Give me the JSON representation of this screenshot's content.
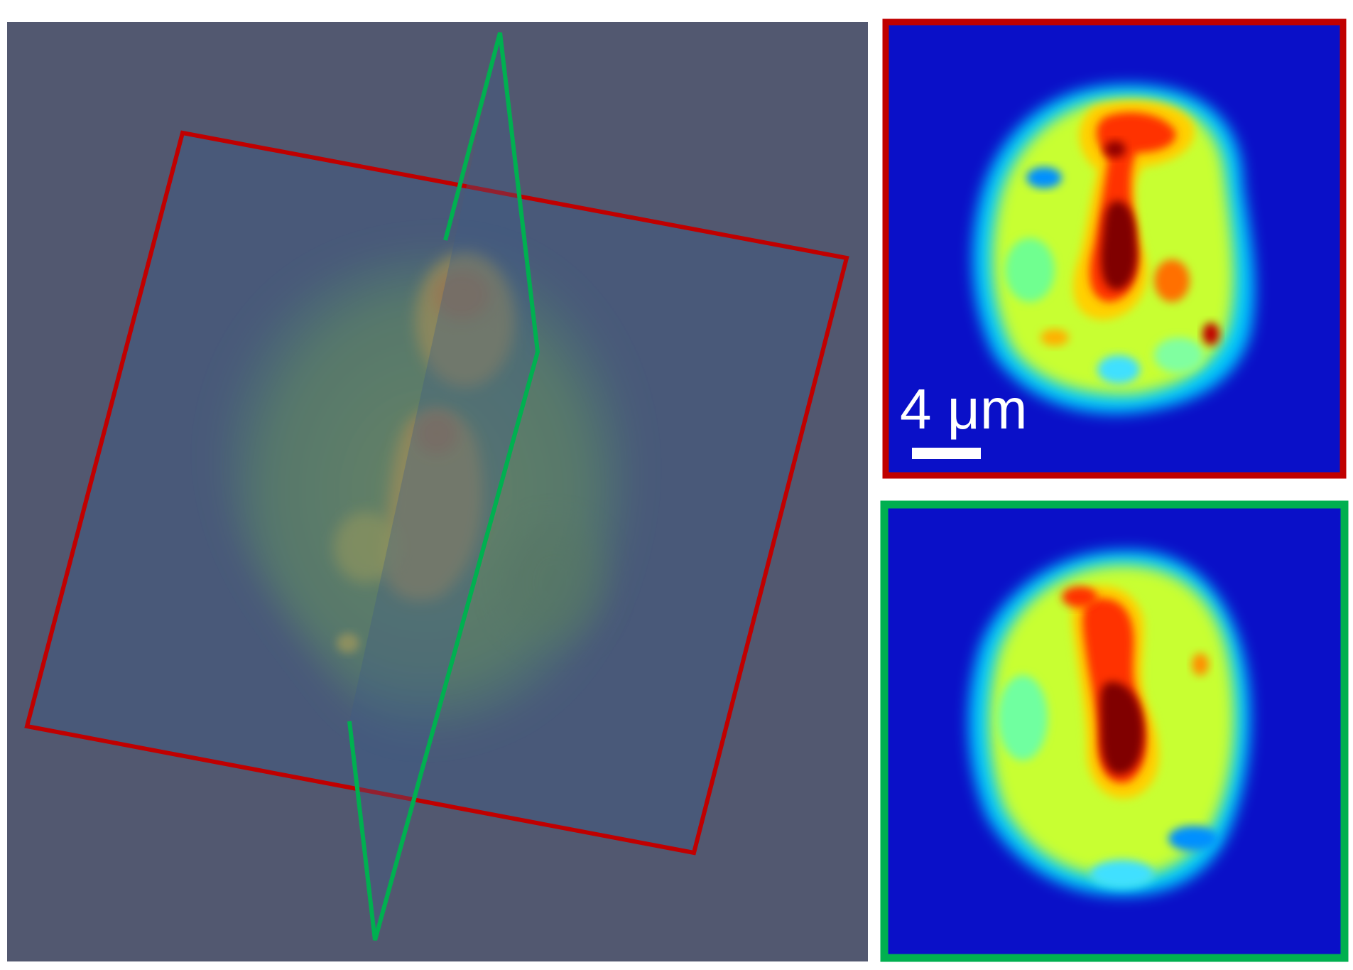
{
  "figure": {
    "volume_panel": {
      "background_color": "#525870",
      "plane_red_color": "#c00000",
      "plane_green_color": "#00b050",
      "plane_fill_color": "#3f5c86"
    },
    "slice_panels": [
      {
        "id": "red-slice",
        "frame_color": "#c00000"
      },
      {
        "id": "green-slice",
        "frame_color": "#00b050"
      }
    ],
    "scale_bar": {
      "label": "4 μm",
      "color": "#ffffff"
    },
    "colormap": [
      "#0000c8",
      "#0050ff",
      "#00c8ff",
      "#40ffc0",
      "#c0ff40",
      "#ffd000",
      "#ff4000",
      "#c00000",
      "#800000"
    ]
  }
}
